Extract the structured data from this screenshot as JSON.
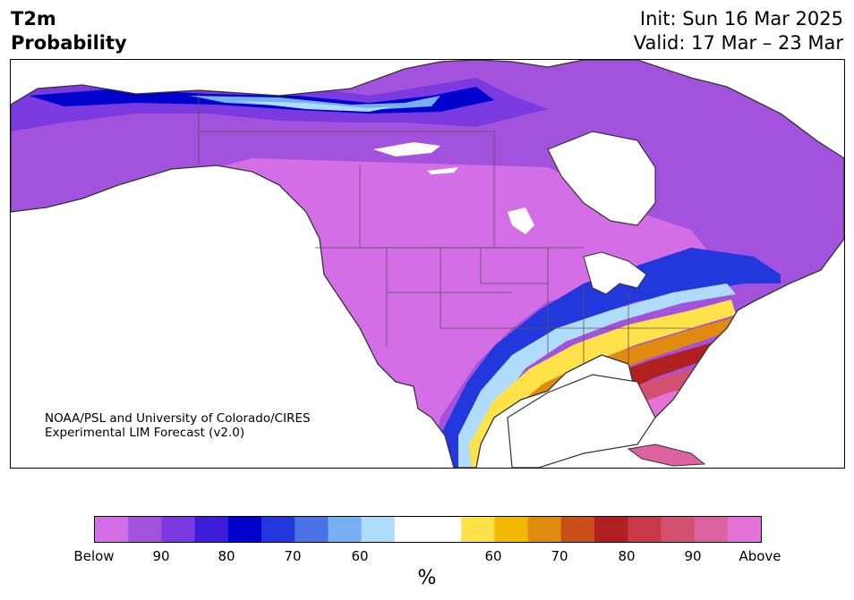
{
  "header": {
    "variable": "T2m",
    "product": "Probability",
    "init": "Init: Sun 16 Mar 2025",
    "valid": "Valid: 17 Mar – 23 Mar"
  },
  "credit": {
    "line1": "NOAA/PSL and University of Colorado/CIRES",
    "line2": "Experimental LIM Forecast (v2.0)"
  },
  "colorbar": {
    "unit": "%",
    "below_colors": [
      "#d46ee6",
      "#a352de",
      "#7a3ae0",
      "#3d1ed8",
      "#0000cc",
      "#2238dc",
      "#4a72e6",
      "#78aef2",
      "#b0dcfc"
    ],
    "neutral_color": "#ffffff",
    "above_colors": [
      "#ffe24a",
      "#f5b800",
      "#e08a10",
      "#c85018",
      "#b02020",
      "#c83848",
      "#d45070",
      "#dc62a0",
      "#e472d8"
    ],
    "labels": [
      "Below",
      "90",
      "80",
      "70",
      "60",
      "60",
      "70",
      "80",
      "90",
      "Above"
    ]
  },
  "legend_colors": {
    "below_high": "#a352de",
    "below_mid": "#2238dc",
    "neutral": "#ffffff",
    "above_mid": "#f5b800",
    "above_high": "#e472d8"
  }
}
